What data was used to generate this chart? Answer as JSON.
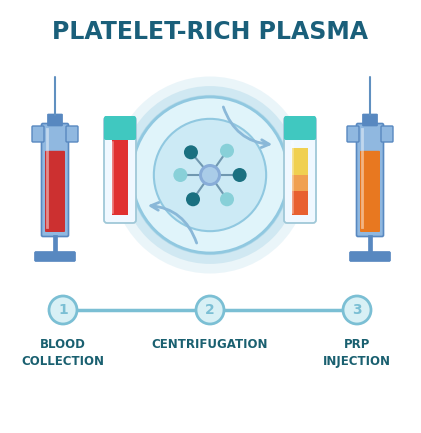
{
  "title": "PLATELET-RICH PLASMA",
  "title_color": "#1a5f7a",
  "background_color": "#ffffff",
  "step_line_color": "#7bbfd4",
  "step_circle_color": "#7bbfd4",
  "step_circle_fill": "#d8f0f5",
  "step_numbers": [
    "1",
    "2",
    "3"
  ],
  "step_labels": [
    [
      "BLOOD",
      "COLLECTION"
    ],
    [
      "CENTRIFUGATION"
    ],
    [
      "PRP",
      "INJECTION"
    ]
  ],
  "label_color": "#1a6070",
  "centrifuge_ring_color": "#90c8e0",
  "centrifuge_fill": "#e0f4fa",
  "centrifuge_inner_fill": "#cceaf5",
  "centrifuge_arrow_color": "#8ab8d8",
  "node_center_color": "#88acd8",
  "node_dark_color": "#1a7080",
  "node_light_color": "#88d0d8",
  "syringe_body_color": "#90b8e0",
  "syringe_dark_color": "#5888c0",
  "syringe_needle_color": "#6090c0",
  "syringe_blood_color": "#cc3030",
  "syringe_prp_color": "#e87820",
  "tube_cap_color": "#40c8c0",
  "tube_body_color": "#f0f8ff",
  "tube_blood_color": "#e03030",
  "tube_plasma_color": "#f0d050",
  "tube_buffy_color": "#f0a050",
  "tube_serum_color": "#e86030"
}
